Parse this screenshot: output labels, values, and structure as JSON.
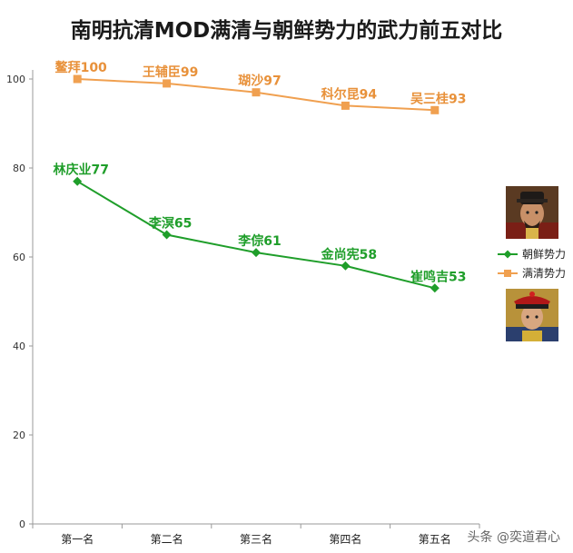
{
  "title": "南明抗清MOD满清与朝鲜势力的武力前五对比",
  "watermark": "头条 @奕道君心",
  "colors": {
    "manchu": "#f0a050",
    "manchu_label": "#e8913a",
    "joseon": "#1f9e2a",
    "axis": "#999999",
    "grid": "#cccccc"
  },
  "chart_data": {
    "type": "line",
    "title": "南明抗清MOD满清与朝鲜势力的武力前五对比",
    "categories": [
      "第一名",
      "第二名",
      "第三名",
      "第四名",
      "第五名"
    ],
    "ylim": [
      0,
      100
    ],
    "yticks": [
      0,
      20,
      40,
      60,
      80,
      100
    ],
    "legend_position": "right",
    "series": [
      {
        "name": "朝鲜势力",
        "color": "#1f9e2a",
        "marker": "diamond",
        "values": [
          77,
          65,
          61,
          58,
          53
        ],
        "labels": [
          "林庆业77",
          "李溟65",
          "李倧61",
          "金尚宪58",
          "崔鸣吉53"
        ]
      },
      {
        "name": "满清势力",
        "color": "#f0a050",
        "marker": "square",
        "values": [
          100,
          99,
          97,
          94,
          93
        ],
        "labels": [
          "鳌拜100",
          "王辅臣99",
          "瑚沙97",
          "科尔昆94",
          "吴三桂93"
        ]
      }
    ]
  },
  "legend_icons": [
    "joseon-king-portrait-icon",
    "qing-official-portrait-icon"
  ]
}
